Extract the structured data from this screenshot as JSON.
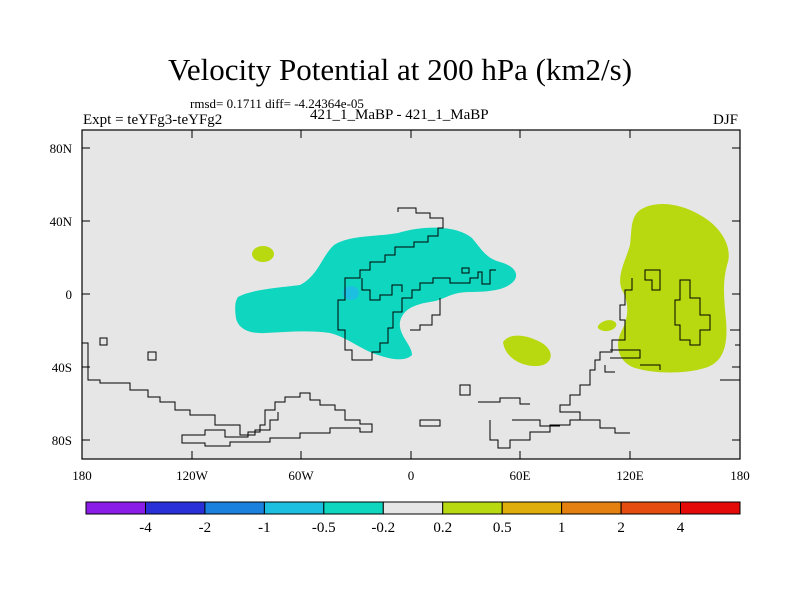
{
  "title": "Velocity Potential at 200 hPa (km2/s)",
  "stats": "rmsd= 0.1711  diff= -4.24364e-05",
  "left_label": "Expt = teYFg3-teYFg2",
  "center_label": "421_1_MaBP - 421_1_MaBP",
  "right_label": "DJF",
  "axes": {
    "y_ticks": [
      "80N",
      "40N",
      "0",
      "40S",
      "80S"
    ],
    "x_ticks": [
      "180",
      "120W",
      "60W",
      "0",
      "60E",
      "120E",
      "180"
    ]
  },
  "colorbar": {
    "colors": [
      "#8a1ee8",
      "#2a30d8",
      "#1a82de",
      "#1cbfe0",
      "#0fd6bf",
      "#e6e6e6",
      "#b8d90f",
      "#e0ae0a",
      "#e4800f",
      "#e44d0f",
      "#e40a0a"
    ],
    "labels": [
      "-4",
      "-2",
      "-1",
      "-0.5",
      "-0.2",
      "0.2",
      "0.5",
      "1",
      "2",
      "4"
    ]
  },
  "colors": {
    "background_field": "#e6e6e6",
    "negative_anomaly": "#0fd6bf",
    "negative_core": "#1cbfe0",
    "positive_anomaly": "#b8d90f"
  }
}
